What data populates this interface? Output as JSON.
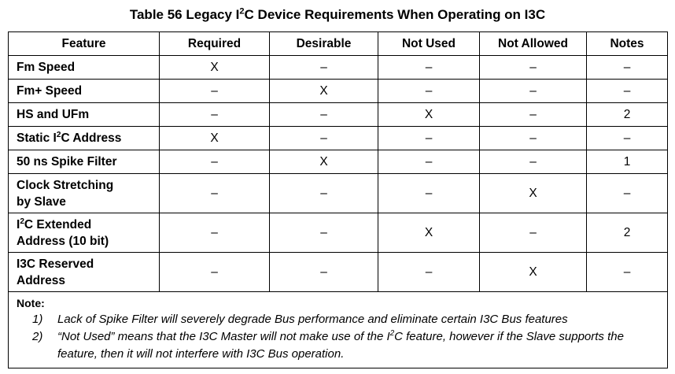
{
  "title": {
    "prefix": "Table 56 Legacy I",
    "sup": "2",
    "suffix": "C Device Requirements When Operating on I3C"
  },
  "columns": [
    "Feature",
    "Required",
    "Desirable",
    "Not Used",
    "Not Allowed",
    "Notes"
  ],
  "rows": [
    {
      "feature": "Fm Speed",
      "required": "X",
      "desirable": "–",
      "not_used": "–",
      "not_allowed": "–",
      "notes": "–"
    },
    {
      "feature": "Fm+ Speed",
      "required": "–",
      "desirable": "X",
      "not_used": "–",
      "not_allowed": "–",
      "notes": "–"
    },
    {
      "feature": "HS and UFm",
      "required": "–",
      "desirable": "–",
      "not_used": "X",
      "not_allowed": "–",
      "notes": "2"
    },
    {
      "feature_prefix": "Static I",
      "feature_sup": "2",
      "feature_suffix": "C Address",
      "required": "X",
      "desirable": "–",
      "not_used": "–",
      "not_allowed": "–",
      "notes": "–"
    },
    {
      "feature": "50 ns Spike Filter",
      "required": "–",
      "desirable": "X",
      "not_used": "–",
      "not_allowed": "–",
      "notes": "1"
    },
    {
      "feature_line1": "Clock Stretching",
      "feature_line2": "by Slave",
      "required": "–",
      "desirable": "–",
      "not_used": "–",
      "not_allowed": "X",
      "notes": "–"
    },
    {
      "feature_prefix": "I",
      "feature_sup": "2",
      "feature_suffix": "C Extended",
      "feature_line2": "Address (10 bit)",
      "required": "–",
      "desirable": "–",
      "not_used": "X",
      "not_allowed": "–",
      "notes": "2"
    },
    {
      "feature_line1": "I3C Reserved",
      "feature_line2": "Address",
      "required": "–",
      "desirable": "–",
      "not_used": "–",
      "not_allowed": "X",
      "notes": "–"
    }
  ],
  "note": {
    "heading": "Note:",
    "items": [
      {
        "num": "1)",
        "text": "Lack of Spike Filter will severely degrade Bus performance and eliminate certain I3C Bus features"
      },
      {
        "num": "2)",
        "text_prefix": "“Not Used” means that the I3C Master will not make use of the I",
        "text_sup": "2",
        "text_suffix": "C feature, however if the Slave supports the feature, then it will not interfere with I3C Bus operation."
      }
    ]
  }
}
